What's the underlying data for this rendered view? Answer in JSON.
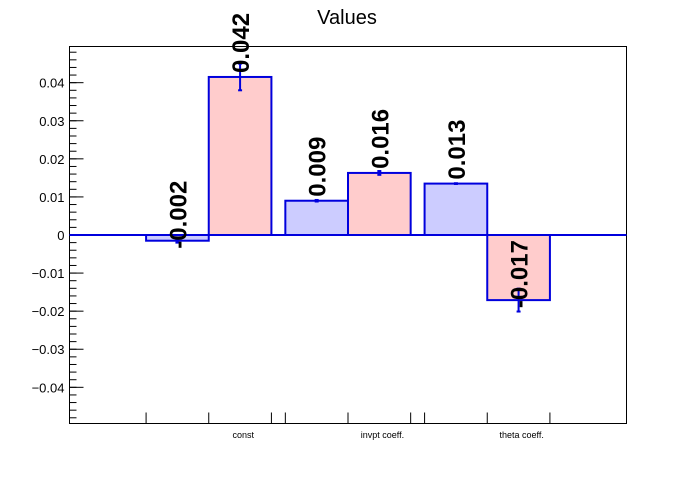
{
  "chart_data": {
    "type": "bar",
    "title": "Values",
    "xlabel": "",
    "ylabel": "",
    "categories": [
      "const",
      "invpt coeff.",
      "theta coeff."
    ],
    "ylim": [
      -0.0495,
      0.0495
    ],
    "yticks": [
      -0.04,
      -0.03,
      -0.02,
      -0.01,
      0,
      0.01,
      0.02,
      0.03,
      0.04
    ],
    "ytick_labels": [
      "−0.04",
      "−0.03",
      "−0.02",
      "−0.01",
      "0",
      "0.01",
      "0.02",
      "0.03",
      "0.04"
    ],
    "grid": false,
    "legend": "none",
    "series": [
      {
        "fill": "#ccccff",
        "edge": "#0000dd",
        "values": [
          -0.0015,
          0.009,
          0.0135
        ],
        "errors": [
          0.0005,
          0.0002,
          0.0001
        ],
        "labels": [
          "-0.002",
          "0.009",
          "0.013"
        ]
      },
      {
        "fill": "#ffcccc",
        "edge": "#0000dd",
        "values": [
          0.0415,
          0.0163,
          -0.0171
        ],
        "errors": [
          0.0035,
          0.0005,
          0.003
        ],
        "labels": [
          "0.042",
          "0.016",
          "-0.017"
        ]
      }
    ]
  }
}
